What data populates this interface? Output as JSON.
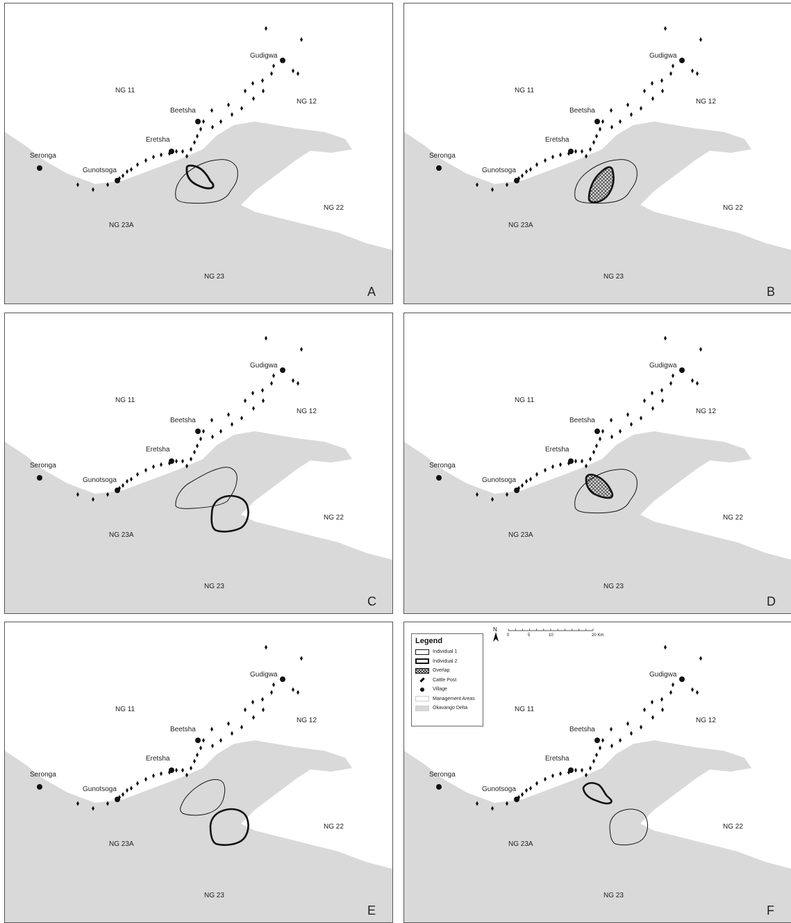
{
  "figure": {
    "panels": [
      {
        "letter": "A"
      },
      {
        "letter": "B"
      },
      {
        "letter": "C"
      },
      {
        "letter": "D"
      },
      {
        "letter": "E"
      },
      {
        "letter": "F"
      }
    ]
  },
  "map_labels": {
    "villages": [
      "Gudigwa",
      "Beetsha",
      "Eretsha",
      "Seronga",
      "Gunotsoga"
    ],
    "areas": [
      "NG 11",
      "NG 12",
      "NG 22",
      "NG 23A",
      "NG 23"
    ]
  },
  "legend": {
    "title": "Legend",
    "items": [
      {
        "label": "Individual 1",
        "symbol": "thin-outline"
      },
      {
        "label": "Individual 2",
        "symbol": "thick-outline"
      },
      {
        "label": "Overlap",
        "symbol": "crosshatch"
      },
      {
        "label": "Cattle Post",
        "symbol": "diamond"
      },
      {
        "label": "Village",
        "symbol": "dot"
      },
      {
        "label": "Management Areas",
        "symbol": "light-line"
      },
      {
        "label": "Okavango Delta",
        "symbol": "grey-fill"
      }
    ]
  },
  "north_arrow": {
    "label": "N"
  },
  "scale_bar": {
    "ticks": [
      "0",
      "5",
      "10",
      "20 Km"
    ]
  },
  "colors": {
    "delta": "#d9d9d9",
    "boundary": "#bbbbbb",
    "ink": "#111111",
    "panel_border": "#555555"
  }
}
